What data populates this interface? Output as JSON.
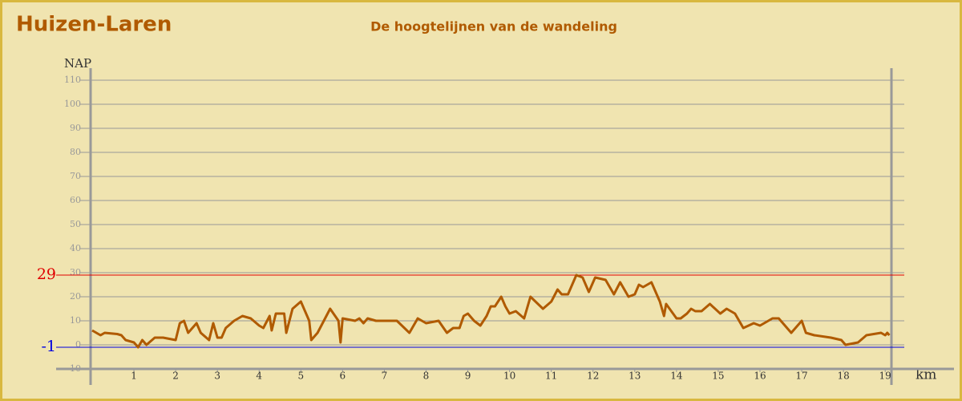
{
  "chart_data": {
    "type": "line",
    "title": "Huizen-Laren",
    "subtitle": "De hoogtelijnen van de wandeling",
    "y_label": "NAP",
    "x_label": "km",
    "color": "#b05a00",
    "grid": true,
    "xlim": [
      0,
      19.15
    ],
    "ylim": [
      -10,
      115
    ],
    "xticks": [
      1,
      2,
      3,
      4,
      5,
      6,
      7,
      8,
      9,
      10,
      11,
      12,
      13,
      14,
      15,
      16,
      17,
      18,
      19
    ],
    "yticks": [
      -10,
      0,
      10,
      20,
      30,
      40,
      50,
      60,
      70,
      80,
      90,
      100,
      110
    ],
    "max_line": {
      "value": 29,
      "color": "#e00000"
    },
    "min_line": {
      "value": -1,
      "color": "#0000e0"
    },
    "x": [
      0,
      0.2,
      0.3,
      0.6,
      0.7,
      0.8,
      1.0,
      1.1,
      1.2,
      1.3,
      1.5,
      1.7,
      2.0,
      2.1,
      2.2,
      2.3,
      2.5,
      2.6,
      2.8,
      2.9,
      3.0,
      3.1,
      3.2,
      3.4,
      3.6,
      3.8,
      4.0,
      4.1,
      4.25,
      4.3,
      4.4,
      4.6,
      4.65,
      4.8,
      5.0,
      5.2,
      5.25,
      5.4,
      5.7,
      5.9,
      5.95,
      6.0,
      6.3,
      6.4,
      6.5,
      6.6,
      6.8,
      7.3,
      7.6,
      7.8,
      8.0,
      8.3,
      8.5,
      8.65,
      8.8,
      8.9,
      9.0,
      9.15,
      9.3,
      9.45,
      9.55,
      9.65,
      9.8,
      9.9,
      10.0,
      10.15,
      10.35,
      10.5,
      10.8,
      11.0,
      11.15,
      11.25,
      11.4,
      11.6,
      11.75,
      11.9,
      12.05,
      12.3,
      12.5,
      12.65,
      12.85,
      13.0,
      13.1,
      13.2,
      13.4,
      13.6,
      13.7,
      13.75,
      14.0,
      14.1,
      14.25,
      14.35,
      14.45,
      14.6,
      14.8,
      15.05,
      15.2,
      15.4,
      15.6,
      15.85,
      16.0,
      16.3,
      16.45,
      16.75,
      17.0,
      17.1,
      17.3,
      17.7,
      17.95,
      18.05,
      18.35,
      18.55,
      18.9,
      19.0,
      19.05,
      19.1
    ],
    "values": [
      6,
      4,
      5,
      4.5,
      4,
      2,
      1,
      -1,
      2,
      0,
      3,
      3,
      2,
      9,
      10,
      5,
      9,
      5,
      2,
      9,
      3,
      3,
      7,
      10,
      12,
      11,
      8,
      7,
      12,
      6,
      13,
      13,
      5,
      15,
      18,
      10,
      2,
      5,
      15,
      10,
      1,
      11,
      10,
      11,
      9,
      11,
      10,
      10,
      5,
      11,
      9,
      10,
      5,
      7,
      7,
      12,
      13,
      10,
      8,
      12,
      16,
      16,
      20,
      16,
      13,
      14,
      11,
      20,
      15,
      18,
      23,
      21,
      21,
      29,
      28,
      22,
      28,
      27,
      21,
      26,
      20,
      21,
      25,
      24,
      26,
      18,
      12,
      17,
      11,
      11,
      13,
      15,
      14,
      14,
      17,
      13,
      15,
      13,
      7,
      9,
      8,
      11,
      11,
      5,
      10,
      5,
      4,
      3,
      2,
      0,
      1,
      4,
      5,
      4,
      5,
      4
    ]
  }
}
